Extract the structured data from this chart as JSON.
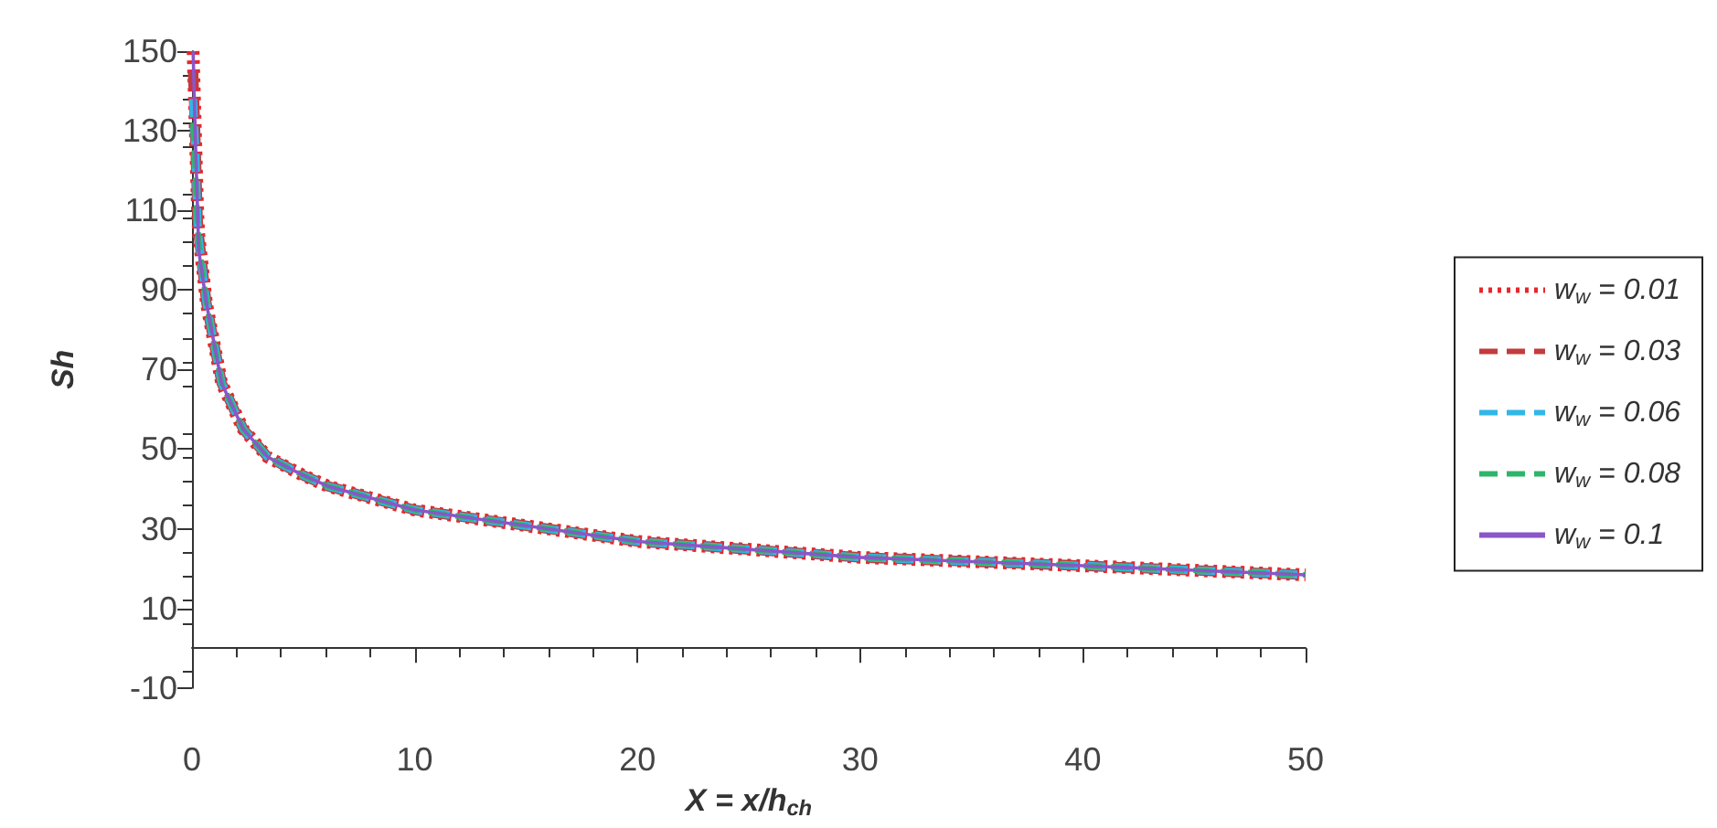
{
  "chart_data": {
    "type": "line",
    "xlabel": "X = x/h$_{ch}$",
    "ylabel": "Sh",
    "xlim": [
      0,
      50
    ],
    "xticks": [
      0,
      10,
      20,
      30,
      40,
      50
    ],
    "ylim": [
      -10,
      150
    ],
    "yticks": [
      -10,
      10,
      30,
      50,
      70,
      90,
      110,
      130,
      150
    ],
    "grid": false,
    "legend": "right",
    "marker": "none",
    "x": [
      0.05,
      0.15,
      0.25,
      0.3,
      0.65,
      1.33,
      2.3,
      3,
      3.4,
      5,
      6.1,
      10,
      20,
      30,
      40,
      50
    ],
    "series": [
      {
        "name": "w$_{w}$ = 0.01",
        "color": "#e8262b",
        "line_style": "dotted",
        "values": [
          150,
          130,
          110,
          104,
          86.6,
          66.6,
          55,
          50.6,
          48,
          43.4,
          40.7,
          34.7,
          26.8,
          22.8,
          20.7,
          18.4
        ]
      },
      {
        "name": "w$_{w}$ = 0.03",
        "color": "#c23b3e",
        "line_style": "dashed",
        "values": [
          145,
          128,
          108,
          104,
          86.6,
          66.6,
          55,
          50.6,
          48,
          43.4,
          40.7,
          34.7,
          26.8,
          22.8,
          20.7,
          18.4
        ]
      },
      {
        "name": "w$_{w}$ = 0.06",
        "color": "#30b7e6",
        "line_style": "dashed",
        "values": [
          138,
          125,
          107,
          103,
          86.6,
          66.6,
          55,
          50.6,
          48,
          43.4,
          40.7,
          34.7,
          26.8,
          22.8,
          20.7,
          18.4
        ]
      },
      {
        "name": "w$_{w}$ = 0.08",
        "color": "#2db56b",
        "line_style": "dashed",
        "values": [
          132,
          120,
          106,
          102,
          86.6,
          66.6,
          55,
          50.6,
          48,
          43.4,
          40.7,
          34.7,
          26.8,
          22.8,
          20.7,
          18.4
        ]
      },
      {
        "name": "w$_{w}$ = 0.1",
        "color": "#8a56c9",
        "line_style": "solid",
        "values": [
          150,
          128,
          110,
          100,
          86.6,
          66.6,
          55,
          50.6,
          48,
          43.4,
          40.7,
          34.7,
          26.8,
          22.8,
          20.7,
          18.4
        ]
      }
    ]
  }
}
